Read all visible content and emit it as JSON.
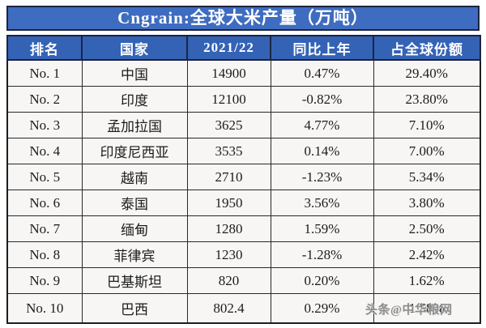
{
  "title": "Cngrain:全球大米产量（万吨）",
  "watermark": "头条@中华粮网",
  "colors": {
    "title_bar_blue": "#3e6cc0",
    "header_blue": "#3463b6",
    "border_dark": "#1e1e1e",
    "cell_bg": "#f7f6f4",
    "text_dark": "#1c1c1c",
    "header_text": "#ffffff",
    "watermark_gray": "#8d8d8d"
  },
  "chart_data": {
    "type": "table",
    "title": "Cngrain:全球大米产量（万吨）",
    "columns": [
      "排名",
      "国家",
      "2021/22",
      "同比上年",
      "占全球份额"
    ],
    "rows": [
      [
        "No. 1",
        "中国",
        "14900",
        "0.47%",
        "29.40%"
      ],
      [
        "No. 2",
        "印度",
        "12100",
        "-0.82%",
        "23.80%"
      ],
      [
        "No. 3",
        "孟加拉国",
        "3625",
        "4.77%",
        "7.10%"
      ],
      [
        "No. 4",
        "印度尼西亚",
        "3535",
        "0.14%",
        "7.00%"
      ],
      [
        "No. 5",
        "越南",
        "2710",
        "-1.23%",
        "5.34%"
      ],
      [
        "No. 6",
        "泰国",
        "1950",
        "3.56%",
        "3.80%"
      ],
      [
        "No. 7",
        "缅甸",
        "1280",
        "1.59%",
        "2.50%"
      ],
      [
        "No. 8",
        "菲律宾",
        "1230",
        "-1.28%",
        "2.42%"
      ],
      [
        "No. 9",
        "巴基斯坦",
        "820",
        "0.20%",
        "1.62%"
      ],
      [
        "No. 10",
        "巴西",
        "802.4",
        "0.29%",
        "1.58%"
      ]
    ]
  }
}
